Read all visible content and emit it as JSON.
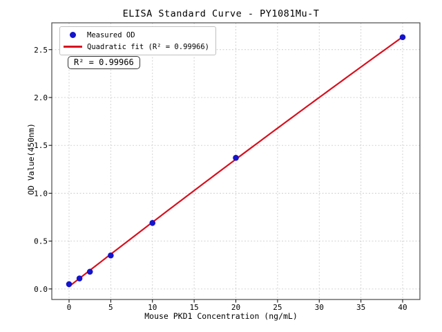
{
  "figure": {
    "background": "#ffffff"
  },
  "chart_data": {
    "type": "scatter",
    "title": "ELISA Standard Curve - PY1081Mu-T",
    "xlabel": "Mouse PKD1 Concentration (ng/mL)",
    "ylabel": "OD Value(450nm)",
    "series": [
      {
        "name": "Measured OD",
        "type": "scatter",
        "color": "#1414cc",
        "x": [
          0,
          1.25,
          2.5,
          5,
          10,
          20,
          40
        ],
        "y": [
          0.05,
          0.11,
          0.18,
          0.35,
          0.69,
          1.37,
          2.63
        ]
      },
      {
        "name": "Quadratic fit (R² = 0.99966)",
        "type": "line",
        "color": "#d8101e",
        "fit": {
          "kind": "quadratic",
          "coefficients": [
            0.026,
            0.06775,
            -6.44e-05
          ],
          "domain": [
            0,
            40
          ]
        },
        "r_squared": 0.99966
      }
    ],
    "xticks": {
      "values": [
        0,
        5,
        10,
        15,
        20,
        25,
        30,
        35,
        40
      ],
      "labels": [
        "0",
        "5",
        "10",
        "15",
        "20",
        "25",
        "30",
        "35",
        "40"
      ]
    },
    "yticks": {
      "values": [
        0,
        0.5,
        1.0,
        1.5,
        2.0,
        2.5
      ],
      "labels": [
        "0.0",
        "0.5",
        "1.0",
        "1.5",
        "2.0",
        "2.5"
      ]
    },
    "xlim": [
      -2.07,
      42.07
    ],
    "ylim": [
      -0.11,
      2.78
    ],
    "grid": true,
    "legend_position": "upper left",
    "annotation": "R² = 0.99966"
  },
  "legend": {
    "items": [
      {
        "label": "Measured OD",
        "marker": "dot",
        "color": "#1414cc"
      },
      {
        "label": "Quadratic fit (R² = 0.99966)",
        "marker": "line",
        "color": "#d8101e"
      }
    ]
  },
  "colors": {
    "grid": "#cdcdcd",
    "spine": "#4a4a4a",
    "legend_border": "#c0c0c0",
    "annotation_border": "#333333"
  }
}
